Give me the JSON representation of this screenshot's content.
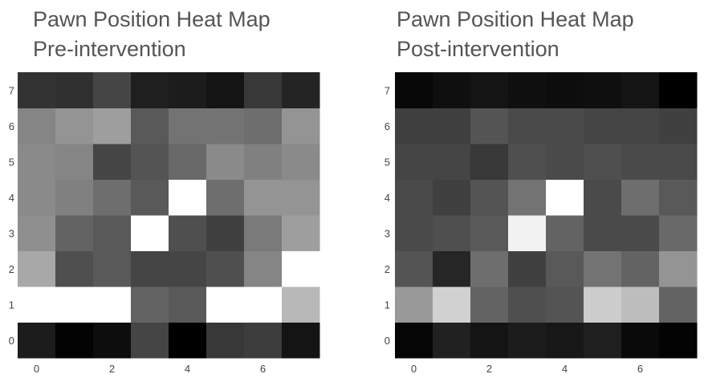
{
  "chart_data": [
    {
      "type": "heatmap",
      "title": [
        "Pawn Position Heat Map",
        "Pre-intervention"
      ],
      "x_ticks": [
        0,
        2,
        4,
        6
      ],
      "y_ticks": [
        0,
        1,
        2,
        3,
        4,
        5,
        6,
        7
      ],
      "x_range": [
        0,
        7
      ],
      "y_range": [
        0,
        7
      ],
      "colorscale": "greys",
      "value_range": [
        0,
        1
      ],
      "z": [
        [
          0.11,
          0.01,
          0.05,
          0.27,
          0.0,
          0.22,
          0.24,
          0.08
        ],
        [
          1.0,
          1.0,
          1.0,
          0.39,
          0.35,
          1.0,
          1.0,
          0.72
        ],
        [
          0.66,
          0.31,
          0.35,
          0.27,
          0.27,
          0.31,
          0.52,
          1.0
        ],
        [
          0.56,
          0.39,
          0.35,
          1.0,
          0.31,
          0.25,
          0.48,
          0.62
        ],
        [
          0.54,
          0.5,
          0.43,
          0.35,
          1.0,
          0.43,
          0.58,
          0.58
        ],
        [
          0.54,
          0.52,
          0.27,
          0.33,
          0.41,
          0.54,
          0.5,
          0.54
        ],
        [
          0.52,
          0.58,
          0.62,
          0.35,
          0.45,
          0.45,
          0.43,
          0.58
        ],
        [
          0.2,
          0.19,
          0.27,
          0.12,
          0.11,
          0.08,
          0.22,
          0.14
        ]
      ]
    },
    {
      "type": "heatmap",
      "title": [
        "Pawn Position Heat Map",
        "Post-intervention"
      ],
      "x_ticks": [
        0,
        2,
        4,
        6
      ],
      "y_ticks": [
        0,
        1,
        2,
        3,
        4,
        5,
        6,
        7
      ],
      "x_range": [
        0,
        7
      ],
      "y_range": [
        0,
        7
      ],
      "colorscale": "greys",
      "value_range": [
        0,
        1
      ],
      "z": [
        [
          0.02,
          0.13,
          0.08,
          0.11,
          0.09,
          0.12,
          0.04,
          0.01
        ],
        [
          0.6,
          0.82,
          0.39,
          0.31,
          0.33,
          0.8,
          0.74,
          0.39
        ],
        [
          0.33,
          0.15,
          0.43,
          0.25,
          0.35,
          0.45,
          0.39,
          0.58
        ],
        [
          0.29,
          0.31,
          0.35,
          0.95,
          0.39,
          0.29,
          0.29,
          0.41
        ],
        [
          0.29,
          0.25,
          0.33,
          0.45,
          1.0,
          0.29,
          0.43,
          0.35
        ],
        [
          0.27,
          0.27,
          0.22,
          0.31,
          0.29,
          0.31,
          0.29,
          0.29
        ],
        [
          0.25,
          0.25,
          0.33,
          0.29,
          0.29,
          0.27,
          0.27,
          0.25
        ],
        [
          0.03,
          0.06,
          0.08,
          0.06,
          0.05,
          0.06,
          0.08,
          0.0
        ]
      ]
    }
  ]
}
